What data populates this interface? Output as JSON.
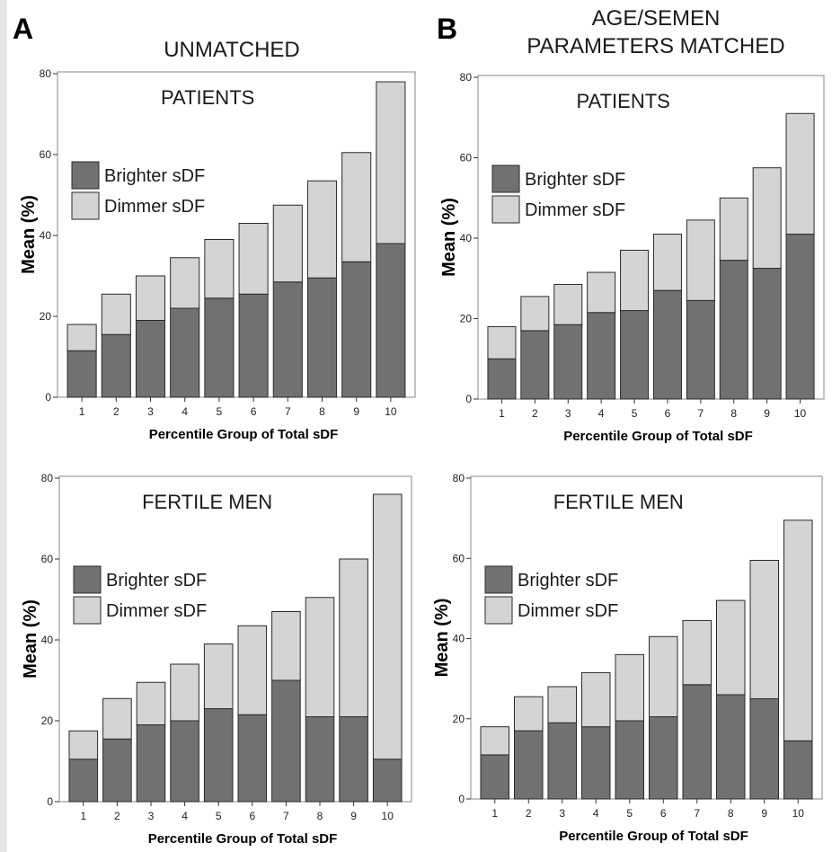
{
  "labels": {
    "panel_a": "A",
    "panel_b": "B",
    "col_a_title": "UNMATCHED",
    "col_b_title_line1": "AGE/SEMEN",
    "col_b_title_line2": "PARAMETERS MATCHED"
  },
  "colors": {
    "brighter": "#717171",
    "dimmer": "#d4d4d4",
    "outline": "#2a2a2a",
    "frame": "#888888"
  },
  "chart_data": [
    {
      "type": "bar",
      "stacked": true,
      "title": "PATIENTS",
      "xlabel": "Percentile Group of Total sDF",
      "ylabel": "Mean  (%)",
      "categories": [
        "1",
        "2",
        "3",
        "4",
        "5",
        "6",
        "7",
        "8",
        "9",
        "10"
      ],
      "ylim": [
        0,
        80
      ],
      "yticks": [
        0,
        20,
        40,
        60,
        80
      ],
      "legend_position": "left",
      "series": [
        {
          "name": "Brighter sDF",
          "values": [
            11.5,
            15.5,
            19,
            22,
            24.5,
            25.5,
            28.5,
            29.5,
            33.5,
            38
          ]
        },
        {
          "name": "Dimmer sDF",
          "values": [
            6.5,
            10,
            11,
            12.5,
            14.5,
            17.5,
            19,
            24,
            27,
            40
          ]
        }
      ]
    },
    {
      "type": "bar",
      "stacked": true,
      "title": "PATIENTS",
      "xlabel": "Percentile Group of Total sDF",
      "ylabel": "Mean  (%)",
      "categories": [
        "1",
        "2",
        "3",
        "4",
        "5",
        "6",
        "7",
        "8",
        "9",
        "10"
      ],
      "ylim": [
        0,
        80
      ],
      "yticks": [
        0,
        20,
        40,
        60,
        80
      ],
      "legend_position": "left",
      "series": [
        {
          "name": "Brighter sDF",
          "values": [
            10,
            17,
            18.5,
            21.5,
            22,
            27,
            24.5,
            34.5,
            32.5,
            41
          ]
        },
        {
          "name": "Dimmer sDF",
          "values": [
            8,
            8.5,
            10,
            10,
            15,
            14,
            20,
            15.5,
            25,
            30
          ]
        }
      ]
    },
    {
      "type": "bar",
      "stacked": true,
      "title": "FERTILE MEN",
      "xlabel": "Percentile Group of Total sDF",
      "ylabel": "Mean  (%)",
      "categories": [
        "1",
        "2",
        "3",
        "4",
        "5",
        "6",
        "7",
        "8",
        "9",
        "10"
      ],
      "ylim": [
        0,
        80
      ],
      "yticks": [
        0,
        20,
        40,
        60,
        80
      ],
      "legend_position": "left",
      "series": [
        {
          "name": "Brighter sDF",
          "values": [
            10.5,
            15.5,
            19,
            20,
            23,
            21.5,
            30,
            21,
            21,
            10.5
          ]
        },
        {
          "name": "Dimmer sDF",
          "values": [
            7,
            10,
            10.5,
            14,
            16,
            22,
            17,
            29.5,
            39,
            65.5
          ]
        }
      ]
    },
    {
      "type": "bar",
      "stacked": true,
      "title": "FERTILE MEN",
      "xlabel": "Percentile Group of Total sDF",
      "ylabel": "Mean  (%)",
      "categories": [
        "1",
        "2",
        "3",
        "4",
        "5",
        "6",
        "7",
        "8",
        "9",
        "10"
      ],
      "ylim": [
        0,
        80
      ],
      "yticks": [
        0,
        20,
        40,
        60,
        80
      ],
      "legend_position": "left",
      "series": [
        {
          "name": "Brighter sDF",
          "values": [
            11,
            17,
            19,
            18,
            19.5,
            20.5,
            28.5,
            26,
            25,
            14.5
          ]
        },
        {
          "name": "Dimmer sDF",
          "values": [
            7,
            8.5,
            9,
            13.5,
            16.5,
            20,
            16,
            23.5,
            34.5,
            55
          ]
        }
      ]
    }
  ]
}
